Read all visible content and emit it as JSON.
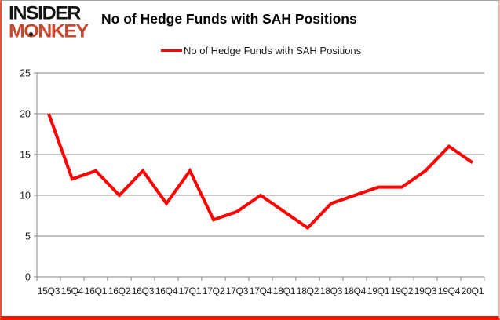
{
  "logo": {
    "line1": "INSIDER",
    "line2": "MONKEY"
  },
  "title": "No of Hedge Funds with SAH Positions",
  "legend": {
    "label": "No of Hedge Funds with SAH Positions"
  },
  "chart_data": {
    "type": "line",
    "title": "No of Hedge Funds with SAH Positions",
    "categories": [
      "15Q3",
      "15Q4",
      "16Q1",
      "16Q2",
      "16Q3",
      "16Q4",
      "17Q1",
      "17Q2",
      "17Q3",
      "17Q4",
      "18Q1",
      "18Q2",
      "18Q3",
      "18Q4",
      "19Q1",
      "19Q2",
      "19Q3",
      "19Q4",
      "20Q1"
    ],
    "series": [
      {
        "name": "No of Hedge Funds with SAH Positions",
        "color": "#fe0100",
        "values": [
          20,
          12,
          13,
          10,
          13,
          9,
          13,
          7,
          8,
          10,
          8,
          6,
          9,
          10,
          11,
          11,
          13,
          16,
          14
        ]
      }
    ],
    "xlabel": "",
    "ylabel": "",
    "ylim": [
      0,
      25
    ],
    "yticks": [
      0,
      5,
      10,
      15,
      20,
      25
    ],
    "grid": "horizontal-only",
    "gridline_color": "#868686",
    "axis_color": "#868686",
    "tick_label_color": "#1a1a1a",
    "legend_position": "top-center"
  },
  "colors": {
    "accent_red": "#fe0100",
    "logo_red": "#c7462e",
    "axis_gray": "#868686",
    "frame_bottom_red": "#f51800"
  }
}
